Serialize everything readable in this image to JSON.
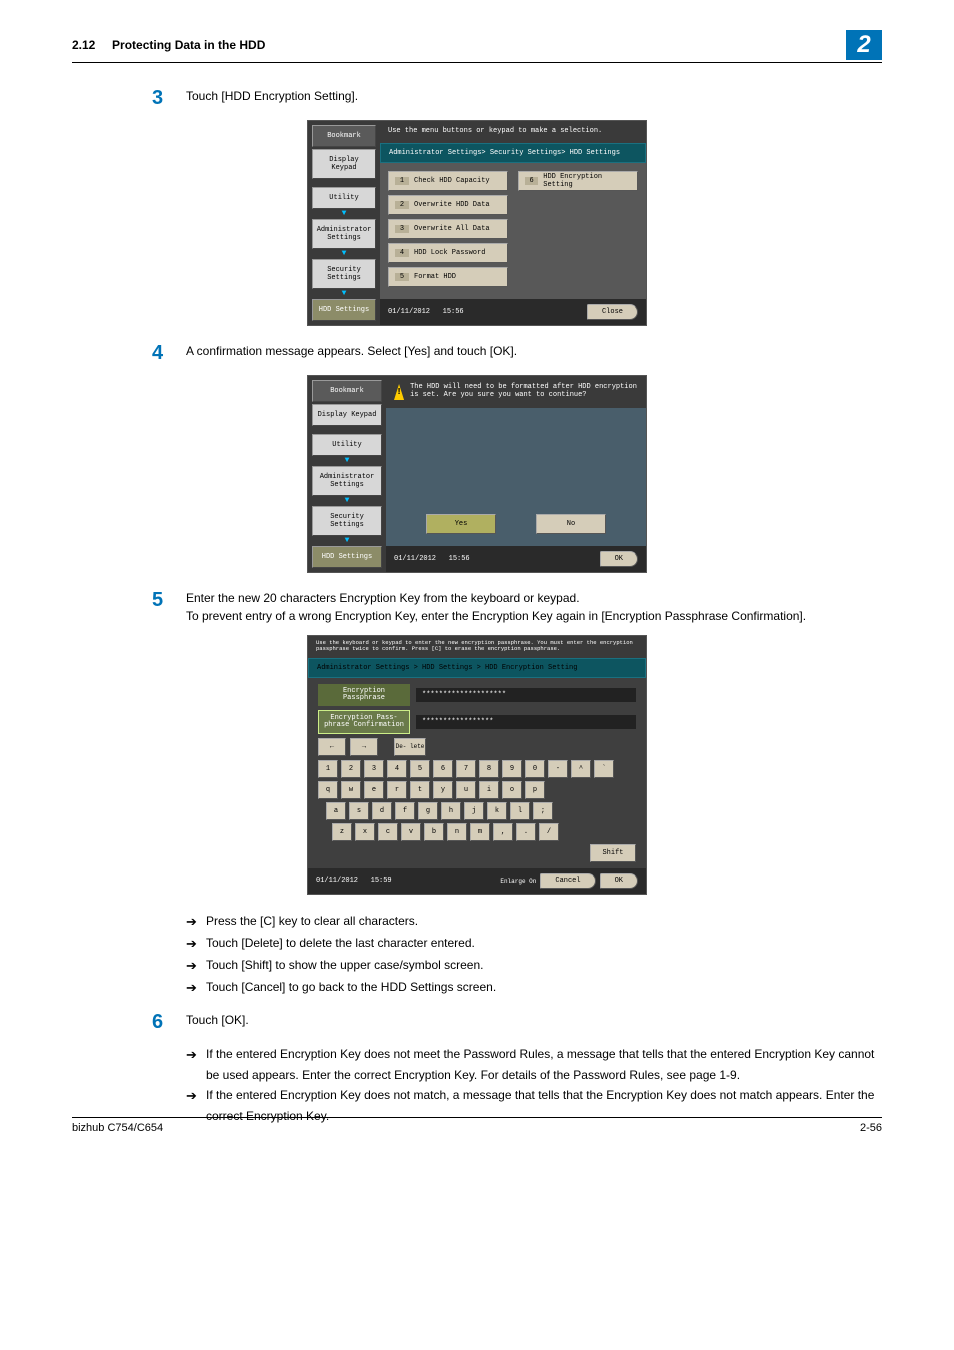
{
  "header": {
    "section": "2.12",
    "title": "Protecting Data in the HDD",
    "chapter": "2"
  },
  "steps": {
    "s3": {
      "num": "3",
      "text": "Touch [HDD Encryption Setting]."
    },
    "s4": {
      "num": "4",
      "text": "A confirmation message appears. Select [Yes] and touch [OK]."
    },
    "s5": {
      "num": "5",
      "line1": "Enter the new 20 characters Encryption Key from the keyboard or keypad.",
      "line2": "To prevent entry of a wrong Encryption Key, enter the Encryption Key again in [Encryption Passphrase Confirmation]."
    },
    "s6": {
      "num": "6",
      "text": "Touch [OK]."
    }
  },
  "bullets_a": {
    "b1": "Press the [C] key to clear all characters.",
    "b2": "Touch [Delete] to delete the last character entered.",
    "b3": "Touch [Shift] to show the upper case/symbol screen.",
    "b4": "Touch [Cancel] to go back to the HDD Settings screen."
  },
  "bullets_b": {
    "b1": "If the entered Encryption Key does not meet the Password Rules, a message that tells that the entered Encryption Key cannot be used appears. Enter the correct Encryption Key. For details of the Password Rules, see page 1-9.",
    "b2": "If the entered Encryption Key does not match, a message that tells that the Encryption Key does not match appears. Enter the correct Encryption Key."
  },
  "scr1": {
    "topmsg": "Use the menu buttons or keypad to make a selection.",
    "bread": "Administrator Settings> Security Settings> HDD Settings",
    "sidebar": {
      "bookmark": "Bookmark",
      "keypad": "Display Keypad",
      "utility": "Utility",
      "admin": "Administrator Settings",
      "security": "Security Settings",
      "hdd": "HDD Settings"
    },
    "buttons": {
      "b1": "Check HDD Capacity",
      "b2": "Overwrite HDD Data",
      "b3": "Overwrite All Data",
      "b4": "HDD Lock Password",
      "b5": "Format HDD",
      "b6": "HDD Encryption Setting"
    },
    "date": "01/11/2012",
    "time": "15:56",
    "close": "Close"
  },
  "scr2": {
    "topmsg": "The HDD will need to be formatted after HDD encryption is set. Are you sure you want to continue?",
    "yes": "Yes",
    "no": "No",
    "date": "01/11/2012",
    "time": "15:56",
    "ok": "OK"
  },
  "scr3": {
    "topmsg": "Use the keyboard or keypad to enter the new encryption passphrase. You must enter the encryption passphrase twice to confirm. Press [C] to erase the encryption passphrase.",
    "bread": "Administrator Settings > HDD Settings > HDD Encryption Setting",
    "field1": "Encryption Passphrase",
    "field2": "Encryption Pass- phrase Confirmation",
    "val1": "********************",
    "val2": "*****************",
    "delete": "De- lete",
    "row1": [
      "1",
      "2",
      "3",
      "4",
      "5",
      "6",
      "7",
      "8",
      "9",
      "0",
      "-",
      "^",
      "`"
    ],
    "row2": [
      "q",
      "w",
      "e",
      "r",
      "t",
      "y",
      "u",
      "i",
      "o",
      "p"
    ],
    "row3": [
      "a",
      "s",
      "d",
      "f",
      "g",
      "h",
      "j",
      "k",
      "l",
      ";"
    ],
    "row4": [
      "z",
      "x",
      "c",
      "v",
      "b",
      "n",
      "m",
      ",",
      ".",
      "/"
    ],
    "shift": "Shift",
    "enlarge": "Enlarge On",
    "cancel": "Cancel",
    "ok": "OK",
    "date": "01/11/2012",
    "time": "15:59"
  },
  "footer": {
    "left": "bizhub C754/C654",
    "right": "2-56"
  }
}
